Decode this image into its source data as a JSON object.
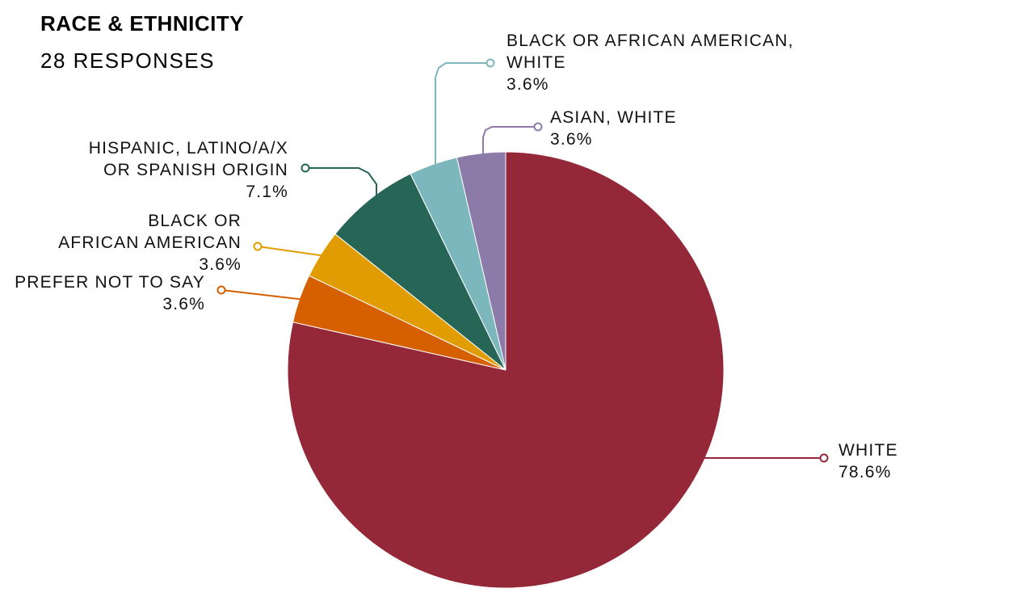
{
  "chart_data": {
    "type": "pie",
    "title": "RACE & ETHNICITY",
    "subtitle": "28 RESPONSES",
    "slices": [
      {
        "label": "WHITE",
        "value": 78.6,
        "value_label": "78.6%",
        "color": "#952838"
      },
      {
        "label": "PREFER NOT TO SAY",
        "value": 3.6,
        "value_label": "3.6%",
        "color": "#D65F00"
      },
      {
        "label": "BLACK OR AFRICAN AMERICAN",
        "value": 3.6,
        "value_label": "3.6%",
        "color": "#E09C00"
      },
      {
        "label": "HISPANIC, LATINO/A/X OR SPANISH ORIGIN",
        "value": 7.1,
        "value_label": "7.1%",
        "color": "#276556"
      },
      {
        "label": "BLACK OR AFRICAN AMERICAN, WHITE",
        "value": 3.6,
        "value_label": "3.6%",
        "color": "#7BB7BD"
      },
      {
        "label": "ASIAN, WHITE",
        "value": 3.6,
        "value_label": "3.6%",
        "color": "#8C7BA8"
      }
    ]
  }
}
